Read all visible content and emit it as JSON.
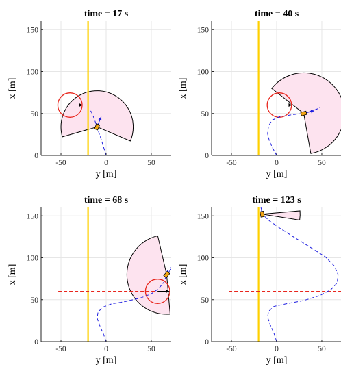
{
  "chart_data": [
    {
      "type": "line",
      "title": "time = 17 s",
      "xlabel": "y [m]",
      "ylabel": "x [m]",
      "xlim": [
        -72,
        72
      ],
      "ylim": [
        0,
        160
      ],
      "xticks": [
        -50,
        0,
        50
      ],
      "yticks": [
        0,
        50,
        100,
        150
      ],
      "xtick_labels": [
        "-50",
        "0",
        "50"
      ],
      "ytick_labels": [
        "0",
        "50",
        "100",
        "150"
      ],
      "grid": true,
      "lane_line": {
        "y": -20,
        "color": "#FFD000"
      },
      "obstacle": {
        "center": [
          -40,
          60
        ],
        "radius": 13.5,
        "trail_from": -53,
        "color": "#E8261D"
      },
      "sector": {
        "origin": [
          -10,
          34
        ],
        "radius": 40,
        "start_deg": -23,
        "end_deg": 196
      },
      "vehicle": {
        "pos": [
          -10,
          34
        ],
        "heading_deg": 68
      },
      "arrow_obstacle": {
        "from": [
          -40,
          60
        ],
        "to": [
          -26,
          60
        ]
      },
      "path": [
        [
          0,
          0
        ],
        [
          -2,
          7
        ],
        [
          -4,
          14
        ],
        [
          -6,
          21
        ],
        [
          -8,
          27
        ],
        [
          -10,
          34
        ],
        [
          -12,
          40
        ],
        [
          -14,
          46
        ],
        [
          -16,
          51
        ],
        [
          -18,
          55
        ]
      ]
    },
    {
      "type": "line",
      "title": "time = 40 s",
      "xlabel": "y [m]",
      "ylabel": "x [m]",
      "xlim": [
        -72,
        72
      ],
      "ylim": [
        0,
        160
      ],
      "xticks": [
        -50,
        0,
        50
      ],
      "yticks": [
        0,
        50,
        100,
        150
      ],
      "xtick_labels": [
        "-50",
        "0",
        "50"
      ],
      "ytick_labels": [
        "0",
        "50",
        "100",
        "150"
      ],
      "grid": true,
      "lane_line": {
        "y": -20,
        "color": "#FFD000"
      },
      "obstacle": {
        "center": [
          3,
          60
        ],
        "radius": 13.5,
        "trail_from": -53,
        "color": "#E8261D"
      },
      "sector": {
        "origin": [
          30,
          50
        ],
        "radius": 45,
        "start_deg": -80,
        "end_deg": 142
      },
      "vehicle": {
        "pos": [
          30,
          50
        ],
        "heading_deg": 15
      },
      "arrow_obstacle": {
        "from": [
          3,
          60
        ],
        "to": [
          17,
          60
        ]
      },
      "path": [
        [
          0,
          0
        ],
        [
          -4,
          8
        ],
        [
          -8,
          17
        ],
        [
          -10,
          26
        ],
        [
          -9,
          35
        ],
        [
          -5,
          42
        ],
        [
          3,
          46
        ],
        [
          14,
          48
        ],
        [
          24,
          49.5
        ],
        [
          30,
          50
        ],
        [
          44,
          55
        ],
        [
          48,
          57
        ]
      ]
    },
    {
      "type": "line",
      "title": "time = 68 s",
      "xlabel": "y [m]",
      "ylabel": "x [m]",
      "xlim": [
        -72,
        72
      ],
      "ylim": [
        0,
        160
      ],
      "xticks": [
        -50,
        0,
        50
      ],
      "yticks": [
        0,
        50,
        100,
        150
      ],
      "xtick_labels": [
        "-50",
        "0",
        "50"
      ],
      "ytick_labels": [
        "0",
        "50",
        "100",
        "150"
      ],
      "grid": true,
      "lane_line": {
        "y": -20,
        "color": "#FFD000"
      },
      "obstacle": {
        "center": [
          57,
          60
        ],
        "radius": 13.5,
        "trail_from": -53,
        "color": "#E8261D"
      },
      "sector": {
        "origin": [
          67,
          80
        ],
        "radius": 44,
        "start_deg": 103,
        "end_deg": 275
      },
      "vehicle": {
        "pos": [
          67,
          80
        ],
        "heading_deg": 50
      },
      "arrow_obstacle": {
        "from": [
          57,
          60
        ],
        "to": [
          70,
          60
        ]
      },
      "path": [
        [
          0,
          0
        ],
        [
          -3,
          9
        ],
        [
          -7,
          19
        ],
        [
          -10,
          28
        ],
        [
          -9,
          35
        ],
        [
          -4,
          41
        ],
        [
          6,
          45
        ],
        [
          22,
          48
        ],
        [
          38,
          52
        ],
        [
          50,
          57
        ],
        [
          58,
          63
        ],
        [
          64,
          71
        ],
        [
          67,
          80
        ],
        [
          68,
          86
        ]
      ]
    },
    {
      "type": "line",
      "title": "time = 123 s",
      "xlabel": "y [m]",
      "ylabel": "x [m]",
      "xlim": [
        -72,
        72
      ],
      "ylim": [
        0,
        160
      ],
      "xticks": [
        -50,
        0,
        50
      ],
      "yticks": [
        0,
        50,
        100,
        150
      ],
      "xtick_labels": [
        "-50",
        "0",
        "50"
      ],
      "ytick_labels": [
        "0",
        "50",
        "100",
        "150"
      ],
      "grid": true,
      "lane_line": {
        "y": -20,
        "color": "#FFD000"
      },
      "obstacle": {
        "center": null,
        "radius": 0,
        "trail_from": -53,
        "trail_y": 60,
        "color": "#E8261D"
      },
      "sector": {
        "origin": [
          -16,
          152
        ],
        "radius": 42,
        "start_deg": -9,
        "end_deg": 5
      },
      "vehicle": {
        "pos": [
          -16,
          152
        ],
        "heading_deg": 100
      },
      "arrow_obstacle": null,
      "path": [
        [
          0,
          0
        ],
        [
          -3,
          10
        ],
        [
          -7,
          20
        ],
        [
          -10,
          29
        ],
        [
          -9,
          36
        ],
        [
          -3,
          42
        ],
        [
          10,
          45
        ],
        [
          30,
          49
        ],
        [
          48,
          55
        ],
        [
          60,
          62
        ],
        [
          67,
          70
        ],
        [
          68,
          80
        ],
        [
          64,
          90
        ],
        [
          54,
          101
        ],
        [
          38,
          112
        ],
        [
          20,
          124
        ],
        [
          4,
          135
        ],
        [
          -8,
          144
        ],
        [
          -14,
          150
        ],
        [
          -16,
          152
        ],
        [
          -16,
          156
        ]
      ]
    }
  ]
}
